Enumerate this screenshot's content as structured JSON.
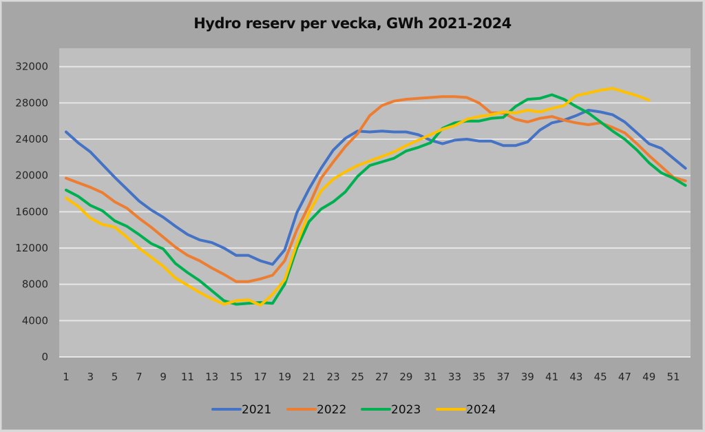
{
  "chart_data": {
    "type": "line",
    "title": "Hydro reserv per vecka, GWh 2021-2024",
    "xlabel": "",
    "ylabel": "",
    "xlim": [
      1,
      52
    ],
    "ylim": [
      0,
      34000
    ],
    "grid": true,
    "legend_position": "bottom",
    "x_tick_labels": [
      "1",
      "3",
      "5",
      "7",
      "9",
      "11",
      "13",
      "15",
      "17",
      "19",
      "21",
      "23",
      "25",
      "27",
      "29",
      "31",
      "33",
      "35",
      "37",
      "39",
      "41",
      "43",
      "45",
      "47",
      "49",
      "51"
    ],
    "y_tick_labels": [
      "0",
      "4000",
      "8000",
      "12000",
      "16000",
      "20000",
      "24000",
      "28000",
      "32000"
    ],
    "y_ticks": [
      0,
      4000,
      8000,
      12000,
      16000,
      20000,
      24000,
      28000,
      32000
    ],
    "series": [
      {
        "name": "2021",
        "color": "#4472c4",
        "x_start": 1,
        "values": [
          24800,
          23600,
          22600,
          21200,
          19800,
          18500,
          17200,
          16200,
          15400,
          14400,
          13500,
          12900,
          12600,
          12000,
          11200,
          11200,
          10600,
          10200,
          11800,
          15900,
          18500,
          20800,
          22800,
          24100,
          24900,
          24800,
          24900,
          24800,
          24800,
          24500,
          23900,
          23500,
          23900,
          24000,
          23800,
          23800,
          23300,
          23300,
          23700,
          25000,
          25800,
          26100,
          26600,
          27200,
          27000,
          26700,
          25900,
          24700,
          23500,
          23000,
          21900,
          20800
        ]
      },
      {
        "name": "2022",
        "color": "#ed7d31",
        "x_start": 1,
        "values": [
          19700,
          19200,
          18700,
          18100,
          17100,
          16400,
          15300,
          14300,
          13200,
          12100,
          11200,
          10600,
          9800,
          9100,
          8300,
          8300,
          8600,
          9000,
          10600,
          14000,
          16700,
          19700,
          21500,
          23200,
          24600,
          26600,
          27700,
          28200,
          28400,
          28500,
          28600,
          28700,
          28700,
          28600,
          28000,
          26900,
          26900,
          26200,
          25900,
          26300,
          26500,
          26100,
          25800,
          25600,
          25800,
          25300,
          24700,
          23500,
          22200,
          21000,
          19800,
          19400
        ]
      },
      {
        "name": "2023",
        "color": "#00b050",
        "x_start": 1,
        "values": [
          18400,
          17700,
          16700,
          16100,
          15000,
          14400,
          13500,
          12500,
          11900,
          10300,
          9300,
          8400,
          7300,
          6200,
          5800,
          5900,
          6000,
          5900,
          8000,
          12000,
          14900,
          16300,
          17100,
          18200,
          19900,
          21100,
          21500,
          21900,
          22700,
          23100,
          23600,
          25200,
          25800,
          26000,
          26000,
          26300,
          26400,
          27600,
          28400,
          28500,
          28900,
          28400,
          27600,
          26900,
          25900,
          24900,
          24000,
          22800,
          21400,
          20300,
          19700,
          18900
        ]
      },
      {
        "name": "2024",
        "color": "#ffc000",
        "x_start": 1,
        "values": [
          17500,
          16600,
          15300,
          14600,
          14300,
          13200,
          12000,
          11000,
          10000,
          8700,
          7900,
          7100,
          6400,
          5800,
          6200,
          6300,
          5700,
          6900,
          8500,
          12500,
          15900,
          18300,
          19600,
          20400,
          21100,
          21600,
          22100,
          22600,
          23300,
          23900,
          24500,
          25100,
          25500,
          26200,
          26500,
          26700,
          27000,
          26900,
          27200,
          27000,
          27400,
          27700,
          28800,
          29100,
          29400,
          29600,
          29200,
          28800,
          28300
        ]
      }
    ]
  }
}
